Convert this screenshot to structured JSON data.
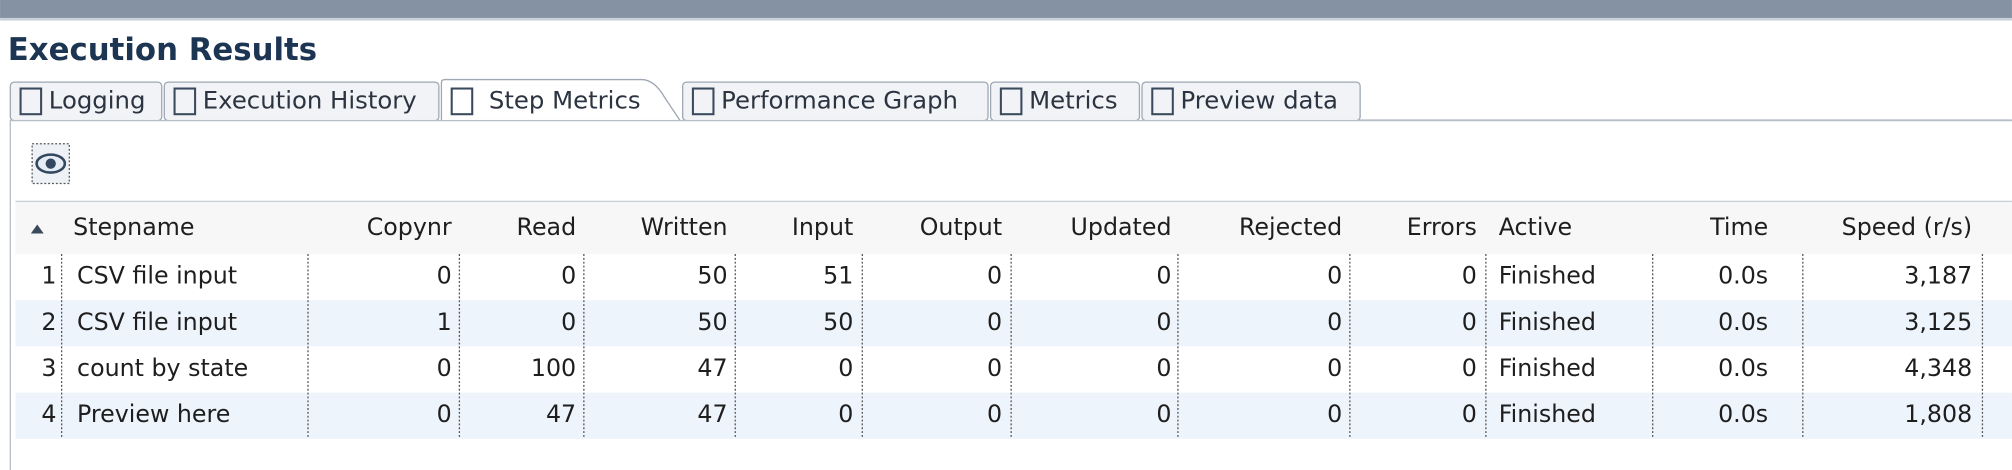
{
  "title": "Execution Results",
  "tabs": [
    "Logging",
    "Execution History",
    "Step Metrics",
    "Performance Graph",
    "Metrics",
    "Preview data"
  ],
  "table": {
    "columns": [
      "Stepname",
      "Copynr",
      "Read",
      "Written",
      "Input",
      "Output",
      "Updated",
      "Rejected",
      "Errors",
      "Active",
      "Time",
      "Speed (r/s)"
    ],
    "rows": [
      [
        "1",
        "CSV file input",
        "0",
        "0",
        "50",
        "51",
        "0",
        "0",
        "0",
        "0",
        "Finished",
        "0.0s",
        "3,187"
      ],
      [
        "2",
        "CSV file input",
        "1",
        "0",
        "50",
        "50",
        "0",
        "0",
        "0",
        "0",
        "Finished",
        "0.0s",
        "3,125"
      ],
      [
        "3",
        "count by state",
        "0",
        "100",
        "47",
        "0",
        "0",
        "0",
        "0",
        "0",
        "Finished",
        "0.0s",
        "4,348"
      ],
      [
        "4",
        "Preview here",
        "0",
        "47",
        "47",
        "0",
        "0",
        "0",
        "0",
        "0",
        "Finished",
        "0.0s",
        "1,808"
      ]
    ]
  }
}
